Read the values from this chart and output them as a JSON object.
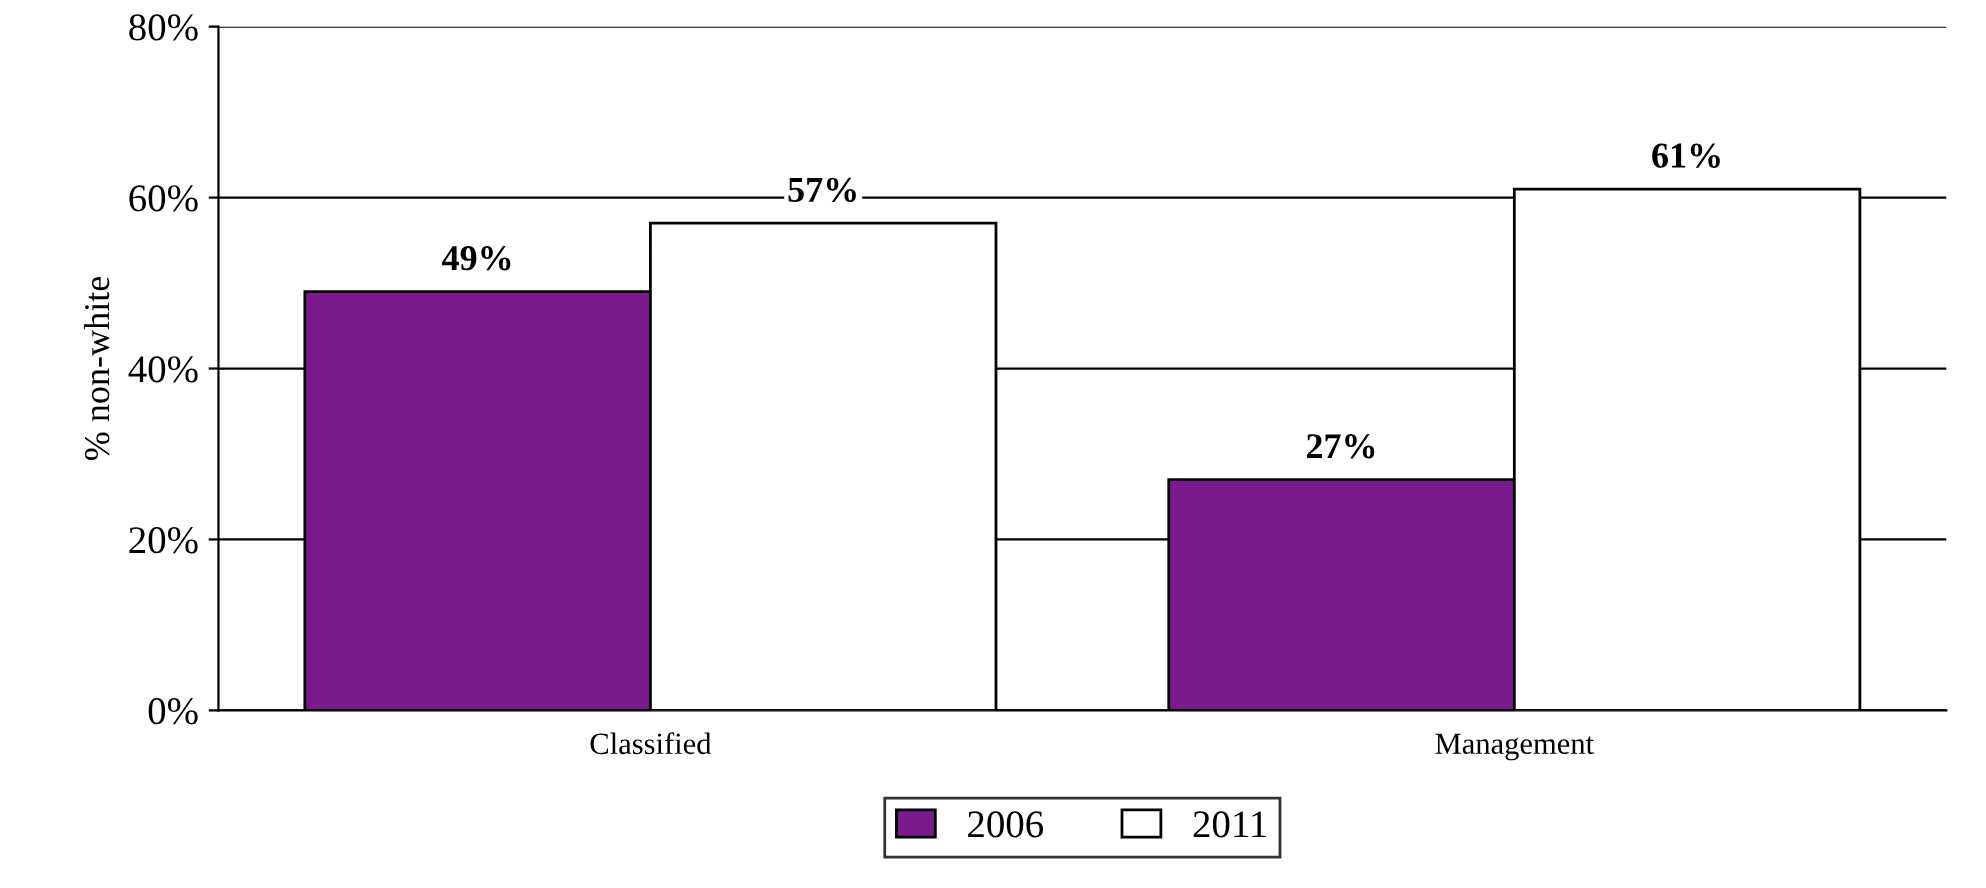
{
  "chart_data": {
    "type": "bar",
    "ylabel": "% non-white",
    "categories": [
      "Classified",
      "Management"
    ],
    "series": [
      {
        "name": "2006",
        "color": "#7a1a8c",
        "values": [
          49,
          27
        ],
        "value_labels": [
          "49%",
          "27%"
        ]
      },
      {
        "name": "2011",
        "color": "#ffffff",
        "values": [
          57,
          61
        ],
        "value_labels": [
          "57%",
          "61%"
        ]
      }
    ],
    "ylim": [
      0,
      80
    ],
    "yticks": [
      {
        "value": 0,
        "label": "0%"
      },
      {
        "value": 20,
        "label": "20%"
      },
      {
        "value": 40,
        "label": "40%"
      },
      {
        "value": 60,
        "label": "60%"
      },
      {
        "value": 80,
        "label": "80%"
      }
    ],
    "grid": "y",
    "legend": "bottom"
  }
}
